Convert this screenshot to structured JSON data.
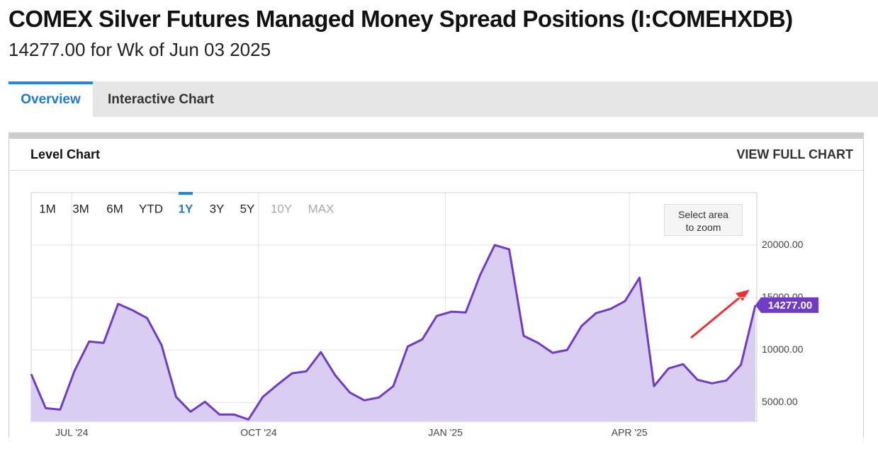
{
  "header": {
    "title": "COMEX Silver Futures Managed Money Spread Positions (I:COMEHXDB)",
    "subtitle": "14277.00 for Wk of Jun 03 2025"
  },
  "tabs": [
    "Overview",
    "Interactive Chart"
  ],
  "card": {
    "title": "Level Chart",
    "link": "VIEW FULL CHART"
  },
  "ranges": [
    "1M",
    "3M",
    "6M",
    "YTD",
    "1Y",
    "3Y",
    "5Y",
    "10Y",
    "MAX"
  ],
  "zoom_hint": "Select area to zoom",
  "chart_data": {
    "type": "area",
    "color": "#6f3cc6",
    "fill": "#d9cdf1",
    "xlim": [
      0,
      50
    ],
    "xticks": [
      {
        "value": 2.8,
        "label": "JUL '24"
      },
      {
        "value": 15.7,
        "label": "OCT '24"
      },
      {
        "value": 28.6,
        "label": "JAN '25"
      },
      {
        "value": 41.3,
        "label": "APR '25"
      }
    ],
    "ylim": [
      3200,
      25000
    ],
    "yticks": [
      {
        "value": 5000,
        "label": "5000.00"
      },
      {
        "value": 10000,
        "label": "10000.00"
      },
      {
        "value": 15000,
        "label": "15000.00"
      },
      {
        "value": 20000,
        "label": "20000.00"
      }
    ],
    "grid": true,
    "values": [
      7703,
      4459,
      4324,
      8041,
      10811,
      10676,
      14392,
      13784,
      13041,
      10473,
      5541,
      4122,
      5068,
      3851,
      3851,
      3378,
      5541,
      6689,
      7770,
      7973,
      9797,
      7568,
      5946,
      5203,
      5473,
      6554,
      10338,
      11014,
      13243,
      13649,
      13581,
      17162,
      20000,
      19595,
      11351,
      10676,
      9730,
      10000,
      12297,
      13514,
      13919,
      14662,
      16892,
      6554,
      8243,
      8649,
      7162,
      6824,
      7095,
      8581,
      14277
    ],
    "last_value": {
      "value": 14277,
      "label": "14277.00"
    }
  }
}
